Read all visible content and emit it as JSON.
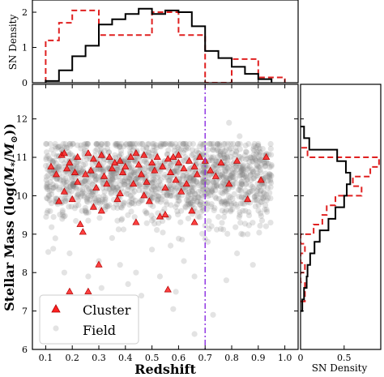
{
  "chart_data": [
    {
      "id": "top_histogram",
      "type": "histogram",
      "ylabel": "SN Density",
      "xlim": [
        0.05,
        1.05
      ],
      "ylim": [
        0,
        2.3
      ],
      "yticks": [
        "0",
        "1",
        "2"
      ],
      "series": [
        {
          "name": "Field",
          "color": "#000000",
          "style": "solid",
          "edges": [
            0.1,
            0.15,
            0.2,
            0.25,
            0.3,
            0.35,
            0.4,
            0.45,
            0.5,
            0.55,
            0.6,
            0.65,
            0.7,
            0.75,
            0.8,
            0.85,
            0.9,
            0.95
          ],
          "values": [
            0.05,
            0.35,
            0.75,
            1.05,
            1.65,
            1.8,
            1.95,
            2.1,
            1.95,
            2.05,
            2.0,
            1.6,
            0.9,
            0.7,
            0.45,
            0.25,
            0.1
          ]
        },
        {
          "name": "Cluster",
          "color": "#e02020",
          "style": "dashed",
          "edges": [
            0.1,
            0.15,
            0.2,
            0.3,
            0.5,
            0.6,
            0.7,
            0.8,
            0.9,
            1.0
          ],
          "values": [
            1.2,
            1.7,
            2.05,
            1.35,
            2.0,
            1.35,
            0.0,
            0.67,
            0.15
          ]
        }
      ]
    },
    {
      "id": "main_scatter",
      "type": "scatter",
      "xlabel": "Redshift",
      "ylabel_text": "Stellar Mass (log(",
      "ylabel_math": "M",
      "ylabel_sub": "*",
      "ylabel_slash": "/",
      "ylabel_sun": "M",
      "ylabel_sunsym": "⊙",
      "ylabel_close": "))",
      "xlim": [
        0.05,
        1.05
      ],
      "ylim": [
        6,
        12.9
      ],
      "xticks": [
        "0.1",
        "0.2",
        "0.3",
        "0.4",
        "0.5",
        "0.6",
        "0.7",
        "0.8",
        "0.9",
        "1.0"
      ],
      "yticks": [
        "6",
        "7",
        "8",
        "9",
        "10",
        "11",
        "12"
      ],
      "vline": {
        "x": 0.7,
        "color": "#8a2be2",
        "style": "dashdot"
      },
      "field": {
        "name": "Field",
        "marker": "circle",
        "color": "#808080",
        "alpha": 0.22,
        "count": 1500,
        "z_range": [
          0.1,
          0.95
        ],
        "mass_core": 10.45,
        "mass_spread": 0.55,
        "points": [
          [
            0.17,
            8.0
          ],
          [
            0.19,
            8.5
          ],
          [
            0.26,
            7.9
          ],
          [
            0.27,
            7.3
          ],
          [
            0.3,
            8.3
          ],
          [
            0.31,
            7.6
          ],
          [
            0.35,
            8.9
          ],
          [
            0.38,
            8.2
          ],
          [
            0.41,
            7.7
          ],
          [
            0.44,
            8.0
          ],
          [
            0.46,
            7.4
          ],
          [
            0.5,
            8.6
          ],
          [
            0.53,
            7.9
          ],
          [
            0.57,
            8.7
          ],
          [
            0.59,
            7.5
          ],
          [
            0.62,
            8.3
          ],
          [
            0.66,
            7.9
          ],
          [
            0.71,
            8.8
          ],
          [
            0.73,
            6.9
          ],
          [
            0.78,
            7.8
          ],
          [
            0.82,
            8.5
          ],
          [
            0.86,
            9.0
          ],
          [
            0.66,
            6.4
          ],
          [
            0.58,
            7.05
          ],
          [
            0.79,
            11.9
          ],
          [
            0.83,
            11.55
          ],
          [
            0.9,
            11.3
          ],
          [
            0.93,
            11.05
          ],
          [
            0.95,
            10.8
          ],
          [
            0.88,
            8.2
          ]
        ]
      },
      "cluster": {
        "name": "Cluster",
        "marker": "triangle",
        "color": "#ff2020",
        "edgecolor": "#b00000",
        "points": [
          [
            0.12,
            10.75
          ],
          [
            0.14,
            10.55
          ],
          [
            0.16,
            11.05
          ],
          [
            0.17,
            10.1
          ],
          [
            0.18,
            10.7
          ],
          [
            0.19,
            10.85
          ],
          [
            0.2,
            9.9
          ],
          [
            0.21,
            10.6
          ],
          [
            0.22,
            11.0
          ],
          [
            0.22,
            10.35
          ],
          [
            0.23,
            9.25
          ],
          [
            0.24,
            9.05
          ],
          [
            0.25,
            10.55
          ],
          [
            0.26,
            11.1
          ],
          [
            0.27,
            10.65
          ],
          [
            0.28,
            10.95
          ],
          [
            0.29,
            10.2
          ],
          [
            0.3,
            10.8
          ],
          [
            0.31,
            9.6
          ],
          [
            0.31,
            11.05
          ],
          [
            0.32,
            10.5
          ],
          [
            0.33,
            10.3
          ],
          [
            0.34,
            11.0
          ],
          [
            0.35,
            10.7
          ],
          [
            0.36,
            10.85
          ],
          [
            0.37,
            9.9
          ],
          [
            0.38,
            10.9
          ],
          [
            0.39,
            10.6
          ],
          [
            0.4,
            10.75
          ],
          [
            0.42,
            11.0
          ],
          [
            0.43,
            10.3
          ],
          [
            0.44,
            9.3
          ],
          [
            0.45,
            10.8
          ],
          [
            0.46,
            10.55
          ],
          [
            0.47,
            11.05
          ],
          [
            0.48,
            10.35
          ],
          [
            0.49,
            9.85
          ],
          [
            0.5,
            10.85
          ],
          [
            0.51,
            10.65
          ],
          [
            0.52,
            11.0
          ],
          [
            0.53,
            9.45
          ],
          [
            0.54,
            10.75
          ],
          [
            0.55,
            10.2
          ],
          [
            0.56,
            10.95
          ],
          [
            0.57,
            10.6
          ],
          [
            0.58,
            11.0
          ],
          [
            0.59,
            10.4
          ],
          [
            0.6,
            10.85
          ],
          [
            0.61,
            10.1
          ],
          [
            0.62,
            10.7
          ],
          [
            0.63,
            10.3
          ],
          [
            0.64,
            10.9
          ],
          [
            0.65,
            9.6
          ],
          [
            0.66,
            10.75
          ],
          [
            0.67,
            10.55
          ],
          [
            0.68,
            11.0
          ],
          [
            0.7,
            10.9
          ],
          [
            0.72,
            10.65
          ],
          [
            0.74,
            10.5
          ],
          [
            0.76,
            10.85
          ],
          [
            0.79,
            10.3
          ],
          [
            0.82,
            10.9
          ],
          [
            0.86,
            9.9
          ],
          [
            0.91,
            10.4
          ],
          [
            0.93,
            11.0
          ],
          [
            0.47,
            10.0
          ],
          [
            0.38,
            10.05
          ],
          [
            0.55,
            9.5
          ],
          [
            0.28,
            9.7
          ],
          [
            0.15,
            9.85
          ],
          [
            0.19,
            7.5
          ],
          [
            0.26,
            7.5
          ],
          [
            0.56,
            7.55
          ],
          [
            0.3,
            8.2
          ],
          [
            0.66,
            9.3
          ],
          [
            0.17,
            11.1
          ],
          [
            0.44,
            11.1
          ],
          [
            0.6,
            11.05
          ]
        ]
      },
      "legend": {
        "position": "lower-left",
        "entries": [
          "Cluster",
          "Field"
        ]
      }
    },
    {
      "id": "right_histogram",
      "type": "histogram",
      "orientation": "horizontal",
      "xlabel": "SN Density",
      "xlim": [
        0,
        0.92
      ],
      "xticks": [
        "0",
        "0.5"
      ],
      "ylim": [
        6,
        12.9
      ],
      "series": [
        {
          "name": "Field",
          "color": "#000000",
          "style": "solid",
          "edges": [
            7.0,
            7.3,
            7.6,
            7.9,
            8.2,
            8.5,
            8.8,
            9.1,
            9.4,
            9.7,
            10.0,
            10.3,
            10.6,
            10.9,
            11.2,
            11.5,
            11.8
          ],
          "values": [
            0.02,
            0.04,
            0.07,
            0.08,
            0.11,
            0.16,
            0.22,
            0.32,
            0.4,
            0.5,
            0.53,
            0.57,
            0.52,
            0.42,
            0.1,
            0.04
          ]
        },
        {
          "name": "Cluster",
          "color": "#e02020",
          "style": "dashed",
          "edges": [
            7.25,
            7.5,
            7.75,
            8.0,
            8.25,
            8.5,
            8.75,
            9.0,
            9.25,
            9.5,
            9.75,
            10.0,
            10.25,
            10.5,
            10.75,
            11.0,
            11.25
          ],
          "values": [
            0.05,
            0.05,
            0.0,
            0.05,
            0.0,
            0.05,
            0.0,
            0.15,
            0.25,
            0.3,
            0.4,
            0.7,
            0.6,
            0.8,
            0.9,
            0.08
          ]
        }
      ]
    }
  ]
}
